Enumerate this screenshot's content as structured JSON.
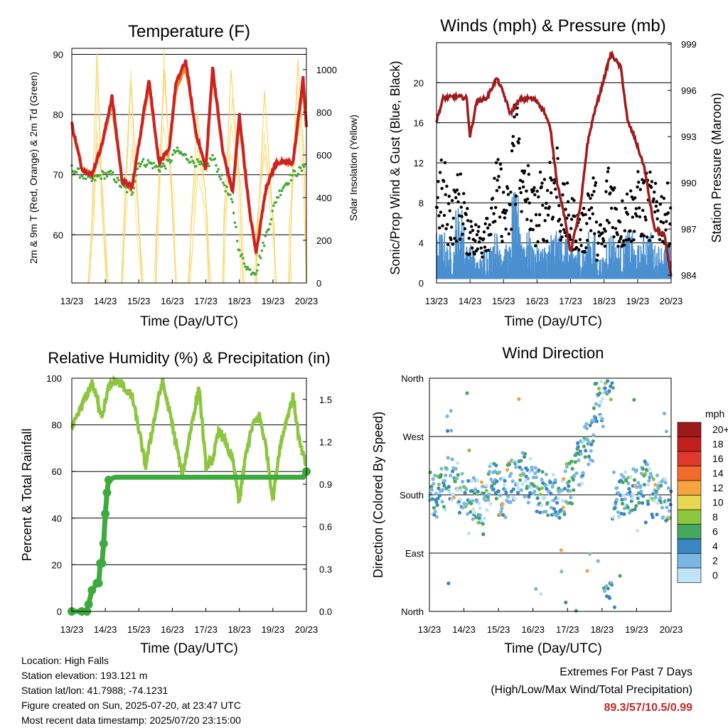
{
  "chart_data": [
    {
      "type": "line",
      "title": "Temperature (F)",
      "xlabel": "Time (Day/UTC)",
      "ylabel": "2m & 9m T (Red, Orange) & 2m Td (Green)",
      "y2label": "Solar Insolation (Yellow)",
      "x_ticks": [
        "13/23",
        "14/23",
        "15/23",
        "16/23",
        "17/23",
        "18/23",
        "19/23",
        "20/23"
      ],
      "ylim": [
        52,
        91
      ],
      "y_ticks": [
        60,
        70,
        80,
        90
      ],
      "y2lim": [
        0,
        1100
      ],
      "y2_ticks": [
        0,
        200,
        400,
        600,
        800,
        1000
      ],
      "grid": "horizontal",
      "series": [
        {
          "name": "2m T",
          "color": "#cc2222",
          "x": [
            0,
            0.3,
            0.6,
            0.9,
            1.2,
            1.5,
            1.8,
            2.0,
            2.3,
            2.6,
            2.9,
            3.1,
            3.4,
            3.7,
            4.0,
            4.2,
            4.5,
            4.8,
            5.0,
            5.3,
            5.5,
            5.8,
            6.1,
            6.3,
            6.6,
            6.9,
            7.0
          ],
          "values": [
            78.5,
            71,
            70,
            75,
            83,
            69,
            68,
            75,
            86,
            72,
            74,
            85,
            89,
            77,
            71,
            88,
            74,
            67,
            80,
            64,
            57,
            68,
            72,
            72,
            72,
            86,
            78
          ]
        },
        {
          "name": "9m T",
          "color": "#f28c28",
          "x": [
            0,
            0.3,
            0.6,
            0.9,
            1.2,
            1.5,
            1.8,
            2.0,
            2.3,
            2.6,
            2.9,
            3.1,
            3.4,
            3.7,
            4.0,
            4.2,
            4.5,
            4.8,
            5.0,
            5.3,
            5.5,
            5.8,
            6.1,
            6.3,
            6.6,
            6.9,
            7.0
          ],
          "values": [
            78,
            71,
            70,
            75,
            82,
            69,
            68,
            75,
            85,
            72,
            74,
            84,
            88,
            77,
            71,
            87,
            74,
            67,
            79,
            64,
            57,
            68,
            72,
            72,
            72,
            85,
            78
          ]
        },
        {
          "name": "2m Td",
          "color": "#44aa33",
          "x": [
            0,
            0.3,
            0.6,
            0.9,
            1.2,
            1.5,
            1.8,
            2.0,
            2.3,
            2.6,
            2.9,
            3.1,
            3.4,
            3.7,
            4.0,
            4.2,
            4.5,
            4.8,
            5.0,
            5.3,
            5.5,
            5.8,
            6.1,
            6.3,
            6.6,
            6.9,
            7.0
          ],
          "values": [
            71,
            70,
            69,
            70,
            70,
            68,
            67,
            72,
            72,
            71,
            72,
            74,
            73,
            72,
            71,
            73,
            69,
            65,
            57,
            54,
            54,
            60,
            66,
            68,
            70,
            71,
            73
          ]
        },
        {
          "name": "Solar Insolation",
          "color": "#f5d76e",
          "axis": "y2",
          "x": [
            0.5,
            0.6,
            0.75,
            0.9,
            1.05,
            1.5,
            1.55,
            1.75,
            2.0,
            2.1,
            2.5,
            2.55,
            2.75,
            3.0,
            3.1,
            3.5,
            3.55,
            3.75,
            4.0,
            4.1,
            4.5,
            4.55,
            4.75,
            5.0,
            5.1,
            5.5,
            5.55,
            5.75,
            6.0,
            6.1,
            6.5,
            6.55,
            6.75,
            6.95,
            7.0
          ],
          "values": [
            0,
            300,
            1080,
            400,
            0,
            0,
            200,
            950,
            300,
            0,
            0,
            300,
            1000,
            400,
            0,
            0,
            250,
            800,
            400,
            0,
            0,
            300,
            1000,
            500,
            0,
            0,
            250,
            900,
            300,
            0,
            0,
            300,
            1050,
            500,
            0
          ]
        }
      ]
    },
    {
      "type": "scatter",
      "title": "Winds (mph) & Pressure (mb)",
      "xlabel": "Time (Day/UTC)",
      "ylabel": "Sonic/Prop Wind & Gust (Blue, Black)",
      "y2label": "Station Pressure (Maroon)",
      "x_ticks": [
        "13/23",
        "14/23",
        "15/23",
        "16/23",
        "17/23",
        "18/23",
        "19/23",
        "20/23"
      ],
      "ylim": [
        0,
        24
      ],
      "y_ticks": [
        0,
        4,
        8,
        12,
        16,
        20
      ],
      "y2lim": [
        983.5,
        999.1
      ],
      "y2_ticks": [
        984,
        987,
        990,
        993,
        996,
        999
      ],
      "grid": "horizontal",
      "series": [
        {
          "name": "Wind",
          "color": "#4a90d0",
          "level": [
            4,
            3,
            6,
            3,
            2,
            3,
            4,
            3,
            7,
            4,
            3,
            3,
            4,
            4,
            3,
            3,
            4,
            2,
            4,
            3,
            4,
            3,
            4,
            3,
            3
          ]
        },
        {
          "name": "Gust",
          "color": "#000000",
          "level": [
            10,
            8,
            9,
            6,
            5,
            7,
            10,
            8,
            16,
            10,
            8,
            9,
            12,
            8,
            7,
            6,
            9,
            5,
            10,
            7,
            8,
            9,
            9,
            8,
            8
          ]
        },
        {
          "name": "Pressure",
          "color": "#a01c1c",
          "x": [
            0,
            0.2,
            0.6,
            0.9,
            1.0,
            1.2,
            1.5,
            1.8,
            2.0,
            2.2,
            2.5,
            2.8,
            3.0,
            3.2,
            3.4,
            3.6,
            3.8,
            4.0,
            4.3,
            4.5,
            4.7,
            4.9,
            5.2,
            5.5,
            5.7,
            5.9,
            6.2,
            6.5,
            6.8,
            7.0
          ],
          "values": [
            994,
            995.5,
            995.6,
            995.5,
            993,
            995.3,
            995.5,
            996.8,
            995.8,
            994.5,
            995.4,
            995.5,
            995.3,
            994.7,
            993.5,
            990,
            988,
            985.5,
            988.5,
            992.5,
            994.5,
            996,
            998.4,
            997.5,
            994,
            993,
            991,
            987,
            986.6,
            984
          ]
        }
      ]
    },
    {
      "type": "line",
      "title": "Relative Humidity (%) & Precipitation (in)",
      "xlabel": "Time (Day/UTC)",
      "ylabel": "Percent & Total Rainfall",
      "x_ticks": [
        "13/23",
        "14/23",
        "15/23",
        "16/23",
        "17/23",
        "18/23",
        "19/23",
        "20/23"
      ],
      "ylim": [
        0,
        100
      ],
      "y_ticks": [
        0,
        20,
        40,
        60,
        80,
        100
      ],
      "y2lim": [
        0,
        1.65
      ],
      "y2_ticks": [
        "0.0",
        "0.3",
        "0.6",
        "0.9",
        "1.2",
        "1.5"
      ],
      "grid": "horizontal",
      "series": [
        {
          "name": "Relative Humidity",
          "color": "#8cc63f",
          "x": [
            0,
            0.3,
            0.6,
            0.9,
            1.1,
            1.3,
            1.5,
            1.8,
            2.0,
            2.2,
            2.4,
            2.7,
            3.0,
            3.3,
            3.6,
            3.8,
            4.0,
            4.2,
            4.4,
            4.6,
            4.8,
            5.0,
            5.2,
            5.4,
            5.6,
            5.8,
            6.0,
            6.2,
            6.4,
            6.6,
            6.8,
            7.0
          ],
          "values": [
            78,
            88,
            98,
            84,
            96,
            99,
            97,
            92,
            78,
            62,
            78,
            99,
            80,
            58,
            82,
            96,
            62,
            65,
            78,
            72,
            65,
            47,
            68,
            80,
            84,
            70,
            48,
            70,
            82,
            92,
            72,
            62
          ]
        },
        {
          "name": "Total Precipitation",
          "color": "#3daa3d",
          "axis": "y2",
          "x": [
            0,
            0.3,
            0.45,
            0.5,
            0.6,
            0.75,
            0.8,
            0.85,
            0.9,
            0.95,
            1.0,
            1.05,
            1.1,
            1.3,
            2.0,
            3.0,
            4.0,
            5.0,
            6.0,
            6.9,
            7.0
          ],
          "values": [
            0,
            0,
            0,
            0.05,
            0.15,
            0.2,
            0.2,
            0.34,
            0.34,
            0.48,
            0.69,
            0.84,
            0.93,
            0.95,
            0.95,
            0.95,
            0.95,
            0.95,
            0.95,
            0.95,
            0.99
          ]
        }
      ]
    },
    {
      "type": "scatter",
      "title": "Wind Direction",
      "xlabel": "Time (Day/UTC)",
      "ylabel": "Direction (Colored By Speed)",
      "x_ticks": [
        "13/23",
        "14/23",
        "15/23",
        "16/23",
        "17/23",
        "18/23",
        "19/23",
        "20/23"
      ],
      "ylim": [
        0,
        360
      ],
      "y_ticks": [
        "North",
        "East",
        "South",
        "West",
        "North"
      ],
      "grid": "horizontal",
      "legend": {
        "position": "right",
        "title": "mph",
        "labels": [
          "20+",
          "18",
          "16",
          "14",
          "12",
          "10",
          "8",
          "6",
          "4",
          "2",
          "0"
        ],
        "colors": [
          "#9b1b1b",
          "#c21f1f",
          "#e0392b",
          "#f26b2a",
          "#f7a340",
          "#e8d84f",
          "#8cc63f",
          "#46a85e",
          "#3a87c4",
          "#7bb6e3",
          "#bfe3f7"
        ]
      },
      "direction_degrees": [
        180,
        190,
        200,
        185,
        175,
        170,
        195,
        180,
        200,
        210,
        190,
        185,
        180,
        175,
        200,
        230,
        260,
        320,
        10,
        180,
        185,
        190,
        200,
        180,
        175
      ]
    }
  ],
  "station": {
    "location": "Location: High Falls",
    "elevation": "Station elevation: 193.121 m",
    "latlon": "Station lat/lon: 41.7988; -74.1231",
    "created": "Figure created on Sun, 2025-07-20, at 23:47 UTC",
    "latest": "Most recent data timestamp: 2025/07/20 23:15:00"
  },
  "extremes": {
    "heading": "Extremes For Past 7 Days",
    "subheading": "(High/Low/Max Wind/Total Precipitation)",
    "values": "89.3/57/10.5/0.99"
  }
}
